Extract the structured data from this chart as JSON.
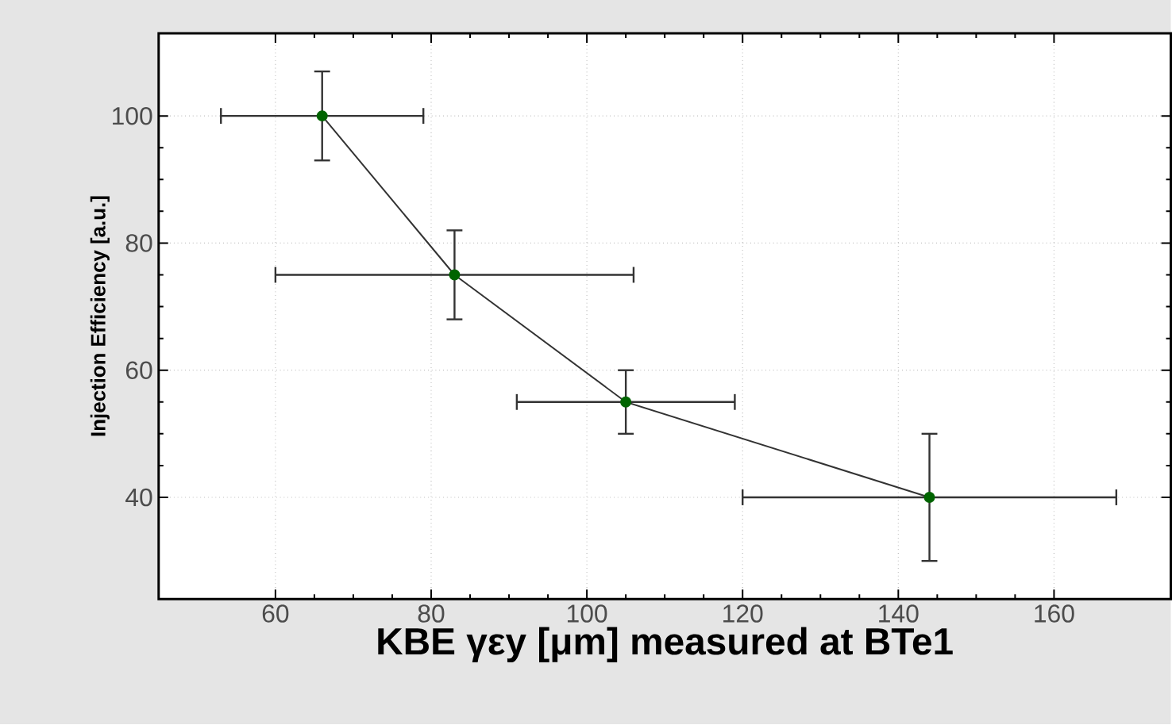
{
  "chart_data": {
    "type": "line",
    "xlabel": "KBE γεy [μm] measured at BTe1",
    "ylabel": "Injection Efficiency [a.u.]",
    "x": [
      66,
      83,
      105,
      144
    ],
    "series": [
      {
        "color": "#006400",
        "values": [
          100,
          75,
          55,
          40
        ],
        "errors": [
          [
            93,
            107
          ],
          [
            68,
            82
          ],
          [
            50,
            60
          ],
          [
            30,
            50
          ]
        ],
        "xerrors": [
          [
            53,
            79
          ],
          [
            60,
            106
          ],
          [
            91,
            119
          ],
          [
            120,
            168
          ]
        ]
      }
    ],
    "xlim": [
      45,
      175
    ],
    "ylim": [
      24,
      113
    ],
    "xticks": [
      60,
      80,
      100,
      120,
      140,
      160
    ],
    "yticks": [
      40,
      60,
      80,
      100
    ],
    "grid": true,
    "marker": "circle",
    "line_style": "solid"
  }
}
